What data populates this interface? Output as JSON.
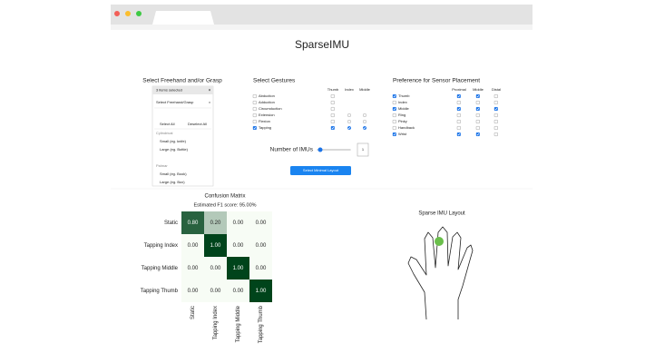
{
  "header": {
    "title": "SparseIMU"
  },
  "grasp": {
    "heading": "Select Freehand and/or Grasp",
    "dropdown": {
      "summary": "3 items selected",
      "search": "Select Freehand/Grasp",
      "select_all": "Select All",
      "deselect_all": "Deselect All",
      "groups": [
        {
          "label": "Cylindrical",
          "items": [
            "Small (eg. knife)",
            "Large (eg. Bottle)"
          ]
        },
        {
          "label": "Palmar",
          "items": [
            "Small (eg. Book)",
            "Large (eg. Box)"
          ]
        }
      ]
    }
  },
  "gestures": {
    "heading": "Select Gestures",
    "columns": [
      "Thumb",
      "Index",
      "Middle"
    ],
    "rows": [
      {
        "label": "Abduction",
        "checked": false,
        "cols": [
          false,
          null,
          null
        ]
      },
      {
        "label": "Adduction",
        "checked": false,
        "cols": [
          false,
          null,
          null
        ]
      },
      {
        "label": "Circumduction",
        "checked": false,
        "cols": [
          false,
          null,
          null
        ]
      },
      {
        "label": "Extension",
        "checked": false,
        "cols": [
          false,
          false,
          false
        ]
      },
      {
        "label": "Flexion",
        "checked": false,
        "cols": [
          false,
          false,
          false
        ]
      },
      {
        "label": "Tapping",
        "checked": true,
        "cols": [
          true,
          true,
          true
        ]
      }
    ]
  },
  "imus": {
    "label": "Number of IMUs",
    "value": 1
  },
  "button": "Select Minimal Layout",
  "placement": {
    "heading": "Preference for Sensor Placement",
    "columns": [
      "Proximal",
      "Middle",
      "Distal"
    ],
    "rows": [
      {
        "label": "Thumb",
        "checked": true,
        "cols": [
          true,
          true,
          false
        ]
      },
      {
        "label": "Index",
        "checked": false,
        "cols": [
          false,
          false,
          false
        ]
      },
      {
        "label": "Middle",
        "checked": true,
        "cols": [
          true,
          true,
          true
        ]
      },
      {
        "label": "Ring",
        "checked": false,
        "cols": [
          false,
          false,
          false
        ]
      },
      {
        "label": "Pinky",
        "checked": false,
        "cols": [
          false,
          false,
          false
        ]
      },
      {
        "label": "Handback",
        "checked": false,
        "cols": [
          false,
          false,
          false
        ]
      },
      {
        "label": "Wrist",
        "checked": true,
        "cols": [
          true,
          true,
          false
        ]
      }
    ]
  },
  "confusion": {
    "title": "Confusion Matrix",
    "subtitle": "Estimated F1 score: 95.00%",
    "labels": [
      "Static",
      "Tapping Index",
      "Tapping Middle",
      "Tapping Thumb"
    ],
    "rows": [
      [
        "0.80",
        "0.20",
        "0.00",
        "0.00"
      ],
      [
        "0.00",
        "1.00",
        "0.00",
        "0.00"
      ],
      [
        "0.00",
        "0.00",
        "1.00",
        "0.00"
      ],
      [
        "0.00",
        "0.00",
        "0.00",
        "1.00"
      ]
    ]
  },
  "layout": {
    "title": "Sparse IMU Layout"
  }
}
